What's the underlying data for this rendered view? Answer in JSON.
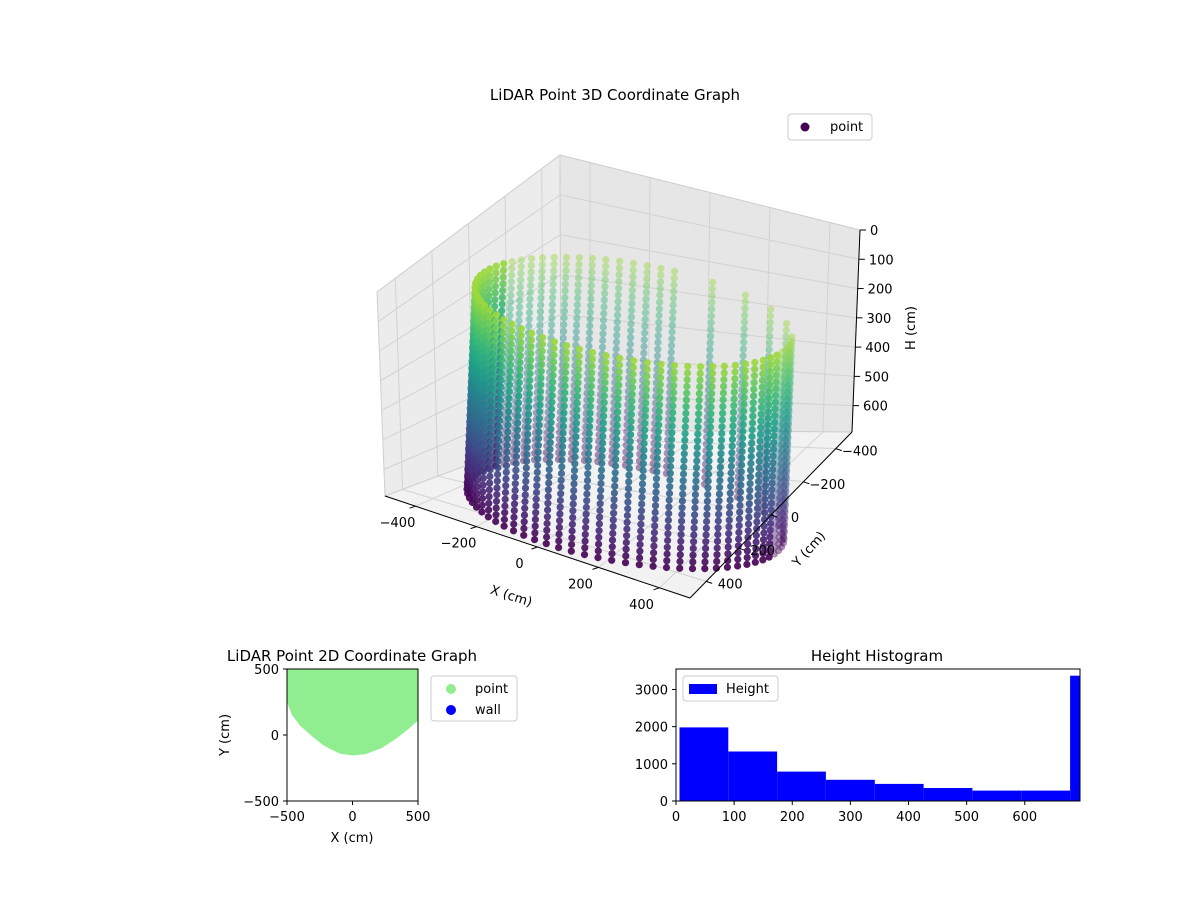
{
  "chart_data": [
    {
      "type": "scatter3d",
      "title": "LiDAR Point 3D Coordinate Graph",
      "xlabel": "X (cm)",
      "ylabel": "Y (cm)",
      "zlabel": "H (cm)",
      "xticks": [
        -400,
        -200,
        0,
        200,
        400
      ],
      "yticks": [
        400,
        200,
        0,
        -200,
        -400
      ],
      "zticks": [
        0,
        100,
        200,
        300,
        400,
        500,
        600
      ],
      "xlim": [
        -500,
        500
      ],
      "ylim": [
        -500,
        500
      ],
      "zlim": [
        0,
        690
      ],
      "zaxis_inverted": true,
      "colormap": "viridis",
      "legend": {
        "labels": [
          "point"
        ],
        "placement": "top-right"
      },
      "series": [
        {
          "name": "point",
          "shape": "partial cylinder wall of points",
          "radius_cm": 450,
          "height_range_cm": [
            0,
            690
          ],
          "color": "#440154"
        }
      ]
    },
    {
      "type": "scatter",
      "title": "LiDAR Point 2D Coordinate Graph",
      "xlabel": "X (cm)",
      "ylabel": "Y (cm)",
      "xticks": [
        -500,
        0,
        500
      ],
      "yticks": [
        500,
        0,
        -500
      ],
      "xlim": [
        -500,
        500
      ],
      "ylim": [
        -500,
        500
      ],
      "legend": {
        "labels": [
          "point",
          "wall"
        ],
        "placement": "outside-right"
      },
      "series": [
        {
          "name": "point",
          "color": "#90ee90",
          "outline": [
            [
              -500,
              500
            ],
            [
              -500,
              250
            ],
            [
              -460,
              150
            ],
            [
              -400,
              70
            ],
            [
              -320,
              0
            ],
            [
              -220,
              -80
            ],
            [
              -100,
              -140
            ],
            [
              0,
              -155
            ],
            [
              100,
              -145
            ],
            [
              220,
              -100
            ],
            [
              330,
              -30
            ],
            [
              420,
              40
            ],
            [
              500,
              110
            ],
            [
              500,
              500
            ]
          ]
        },
        {
          "name": "wall",
          "color": "#0000ff",
          "points": []
        }
      ]
    },
    {
      "type": "bar",
      "title": "Height Histogram",
      "xlabel": "",
      "ylabel": "",
      "xticks": [
        0,
        100,
        200,
        300,
        400,
        500,
        600
      ],
      "yticks": [
        0,
        1000,
        2000,
        3000
      ],
      "xlim": [
        0,
        695
      ],
      "ylim": [
        0,
        3550
      ],
      "bins": [
        [
          6,
          90
        ],
        [
          90,
          174
        ],
        [
          174,
          258
        ],
        [
          258,
          342
        ],
        [
          342,
          426
        ],
        [
          426,
          510
        ],
        [
          510,
          594
        ],
        [
          594,
          678
        ],
        [
          678,
          695
        ]
      ],
      "series": [
        {
          "name": "Height",
          "color": "#0000ff",
          "values": [
            1980,
            1330,
            790,
            570,
            460,
            350,
            280,
            280,
            3370
          ]
        }
      ],
      "legend": {
        "labels": [
          "Height"
        ],
        "placement": "top-left"
      }
    }
  ]
}
